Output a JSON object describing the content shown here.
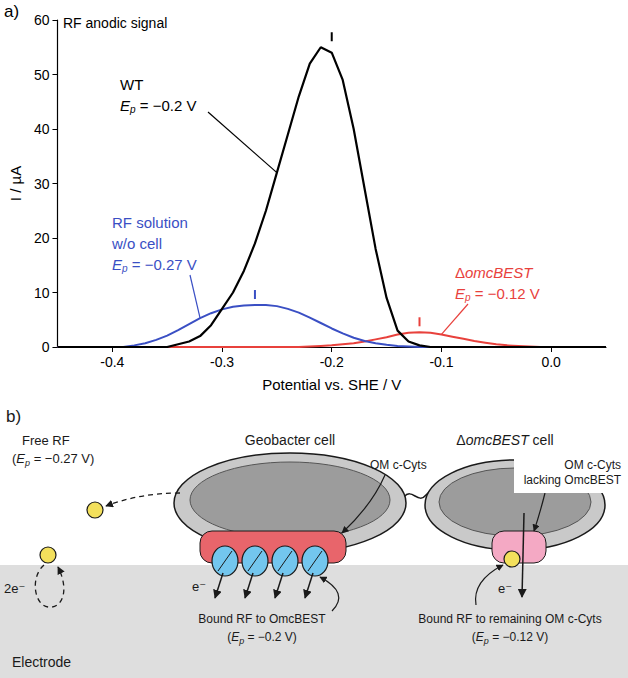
{
  "chart_data": {
    "type": "line",
    "panel": "a)",
    "title": "RF anodic signal",
    "xlabel": "Potential vs. SHE / V",
    "ylabel": "I / µA",
    "x": [
      -0.45,
      -0.44,
      -0.43,
      -0.42,
      -0.41,
      -0.4,
      -0.39,
      -0.38,
      -0.37,
      -0.36,
      -0.35,
      -0.34,
      -0.33,
      -0.32,
      -0.31,
      -0.3,
      -0.29,
      -0.28,
      -0.27,
      -0.26,
      -0.25,
      -0.24,
      -0.23,
      -0.22,
      -0.21,
      -0.2,
      -0.19,
      -0.18,
      -0.17,
      -0.16,
      -0.15,
      -0.14,
      -0.13,
      -0.12,
      -0.11,
      -0.1,
      -0.09,
      -0.08,
      -0.07,
      -0.06,
      -0.05,
      -0.04,
      -0.03,
      -0.02,
      -0.01,
      0,
      0.01,
      0.02,
      0.03,
      0.04,
      0.05
    ],
    "xlim": [
      -0.45,
      0.05
    ],
    "xticks": [
      -0.4,
      -0.3,
      -0.2,
      -0.1,
      {
        "value": 0,
        "label": "0.0"
      }
    ],
    "ylim": [
      0,
      60
    ],
    "yticks": [
      0,
      10,
      20,
      30,
      40,
      50,
      60
    ],
    "grid": false,
    "series": [
      {
        "name": "WT",
        "color": "#000000",
        "peak_potential": -0.2,
        "annotation": "Ep = −0.2 V",
        "values": [
          0,
          0,
          0,
          0,
          0,
          0,
          0,
          0,
          0,
          0,
          0,
          0.5,
          1,
          2,
          4,
          7,
          10,
          14,
          19,
          25,
          32,
          39,
          46,
          52,
          55,
          54,
          49,
          40,
          29,
          18,
          9,
          3,
          1,
          0.3,
          0,
          0,
          0,
          0,
          0,
          0,
          0,
          0,
          0,
          0,
          0,
          0,
          0,
          0,
          0,
          0,
          0
        ]
      },
      {
        "name": "RF solution w/o cell",
        "color": "#3a4fc4",
        "peak_potential": -0.27,
        "annotation": "Ep = −0.27 V",
        "values": [
          0,
          0,
          0,
          0,
          0,
          0,
          0,
          0.3,
          0.7,
          1.3,
          2.1,
          3.1,
          4.2,
          5.3,
          6.2,
          6.9,
          7.4,
          7.6,
          7.7,
          7.7,
          7.5,
          7.0,
          6.3,
          5.4,
          4.4,
          3.4,
          2.5,
          1.7,
          1.1,
          0.7,
          0.4,
          0.2,
          0.1,
          0,
          0,
          0,
          0,
          0,
          0,
          0,
          0,
          0,
          0,
          0,
          0,
          0,
          0,
          0,
          0,
          0,
          0
        ]
      },
      {
        "name": "ΔomcBEST",
        "color": "#e8413c",
        "peak_potential": -0.12,
        "annotation": "Ep = −0.12 V",
        "values": [
          0,
          0,
          0,
          0,
          0,
          0,
          0,
          0,
          0,
          0,
          0,
          0,
          0,
          0,
          0,
          0,
          0,
          0,
          0,
          0,
          0,
          0,
          0,
          0.1,
          0.2,
          0.3,
          0.5,
          0.7,
          1.0,
          1.4,
          1.8,
          2.3,
          2.6,
          2.7,
          2.6,
          2.3,
          1.9,
          1.5,
          1.1,
          0.8,
          0.5,
          0.3,
          0.2,
          0.1,
          0,
          0,
          0,
          0,
          0,
          0,
          0
        ]
      }
    ]
  },
  "diagram": {
    "panel": "b)",
    "electrode": "Electrode",
    "free_rf": {
      "label": "Free RF",
      "potential": "(Ep = −0.27 V)",
      "electrons": "2e⁻"
    },
    "wild_type_cell": {
      "label": "Geobacter cell",
      "outer_membrane": "OM c-Cyts",
      "bound": "Bound RF to OmcBEST",
      "potential": "(Ep = −0.2 V)",
      "electron": "e⁻"
    },
    "mutant_cell": {
      "label": "ΔomcBEST cell",
      "outer_membrane": "OM c-Cyts lacking OmcBEST",
      "bound": "Bound RF to remaining OM c-Cyts",
      "potential": "(Ep = −0.12 V)",
      "electron": "e⁻"
    }
  }
}
